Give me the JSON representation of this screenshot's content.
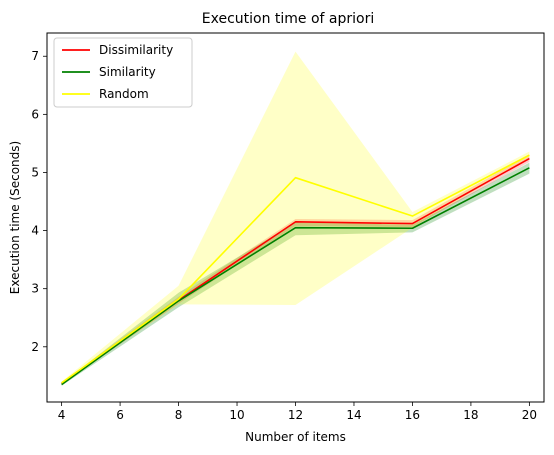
{
  "chart_data": {
    "type": "line",
    "title": "Execution time of apriori",
    "xlabel": "Number of items",
    "ylabel": "Execution time (Seconds)",
    "xlim": [
      3.5,
      20.5
    ],
    "ylim": [
      1.05,
      7.4
    ],
    "xticks": [
      4,
      6,
      8,
      10,
      12,
      14,
      16,
      18,
      20
    ],
    "yticks": [
      2,
      3,
      4,
      5,
      6,
      7
    ],
    "grid": false,
    "legend_position": "top-left",
    "x": [
      4,
      8,
      12,
      16,
      20
    ],
    "series": [
      {
        "name": "Dissimilarity",
        "color": "#ff0000",
        "values": [
          1.37,
          2.8,
          4.15,
          4.12,
          5.24
        ],
        "lower": [
          1.35,
          2.74,
          4.08,
          4.06,
          5.18
        ],
        "upper": [
          1.39,
          2.86,
          4.2,
          4.18,
          5.3
        ],
        "band_color": "#ff0000",
        "band_opacity": 0.2
      },
      {
        "name": "Similarity",
        "color": "#008000",
        "values": [
          1.35,
          2.79,
          4.05,
          4.04,
          5.08
        ],
        "lower": [
          1.33,
          2.68,
          3.92,
          3.97,
          4.98
        ],
        "upper": [
          1.37,
          2.93,
          4.14,
          4.1,
          5.17
        ],
        "band_color": "#008000",
        "band_opacity": 0.25
      },
      {
        "name": "Random",
        "color": "#ffff00",
        "values": [
          1.38,
          2.82,
          4.91,
          4.25,
          5.3
        ],
        "lower": [
          1.37,
          2.73,
          2.72,
          4.05,
          5.25
        ],
        "upper": [
          1.4,
          3.05,
          7.08,
          4.32,
          5.36
        ],
        "band_color": "#ffff00",
        "band_opacity": 0.22
      }
    ]
  }
}
